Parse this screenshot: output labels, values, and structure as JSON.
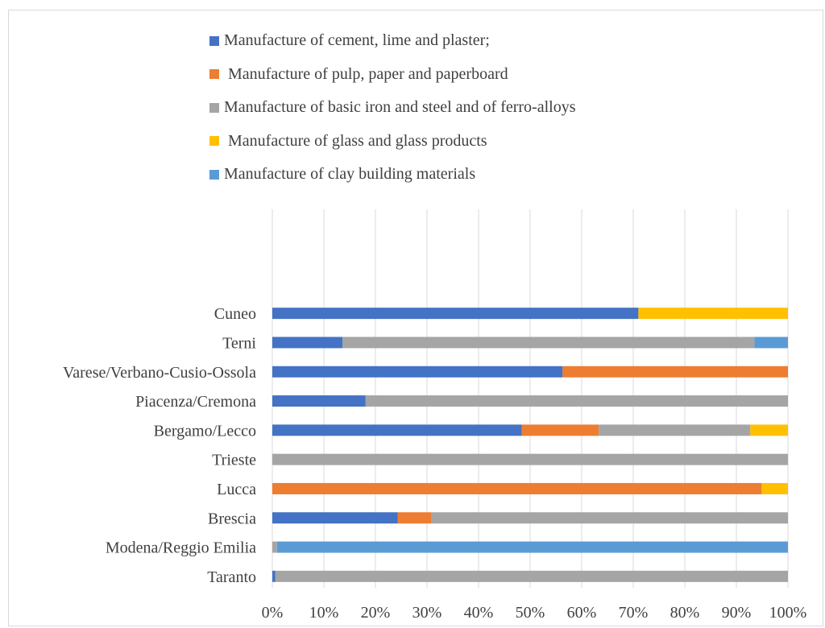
{
  "chart_data": {
    "type": "bar",
    "orientation": "horizontal",
    "stacked": "percent",
    "categories": [
      "Taranto",
      "Modena/Reggio Emilia",
      "Brescia",
      "Lucca",
      "Trieste",
      "Bergamo/Lecco",
      "Piacenza/Cremona",
      "Varese/Verbano-Cusio-Ossola",
      "Terni",
      "Cuneo"
    ],
    "series": [
      {
        "name": "Manufacture of cement, lime and plaster;",
        "color": "#4472C4",
        "values": [
          0.6,
          0,
          24.3,
          0,
          0,
          48.4,
          18.1,
          56.3,
          13.6,
          71
        ]
      },
      {
        "name": " Manufacture of pulp, paper and paperboard",
        "color": "#ED7D31",
        "values": [
          0,
          0,
          6.6,
          94.9,
          0,
          14.9,
          0,
          43.7,
          0,
          0
        ]
      },
      {
        "name": "Manufacture of basic iron and steel and of ferro-alloys",
        "color": "#A5A5A5",
        "values": [
          99.4,
          0.9,
          69.1,
          0,
          100,
          29.4,
          81.9,
          0,
          79.9,
          0
        ]
      },
      {
        "name": " Manufacture of glass and glass products",
        "color": "#FFC000",
        "values": [
          0,
          0,
          0,
          5.1,
          0,
          7.3,
          0,
          0,
          0,
          29
        ]
      },
      {
        "name": "Manufacture of clay building materials",
        "color": "#5B9BD5",
        "values": [
          0,
          99.1,
          0,
          0,
          0,
          0,
          0,
          0,
          6.5,
          0
        ]
      }
    ],
    "xticks": [
      "0%",
      "10%",
      "20%",
      "30%",
      "40%",
      "50%",
      "60%",
      "70%",
      "80%",
      "90%",
      "100%"
    ],
    "xlim": [
      0,
      100
    ],
    "grid": "vertical",
    "legend_position": "top"
  }
}
